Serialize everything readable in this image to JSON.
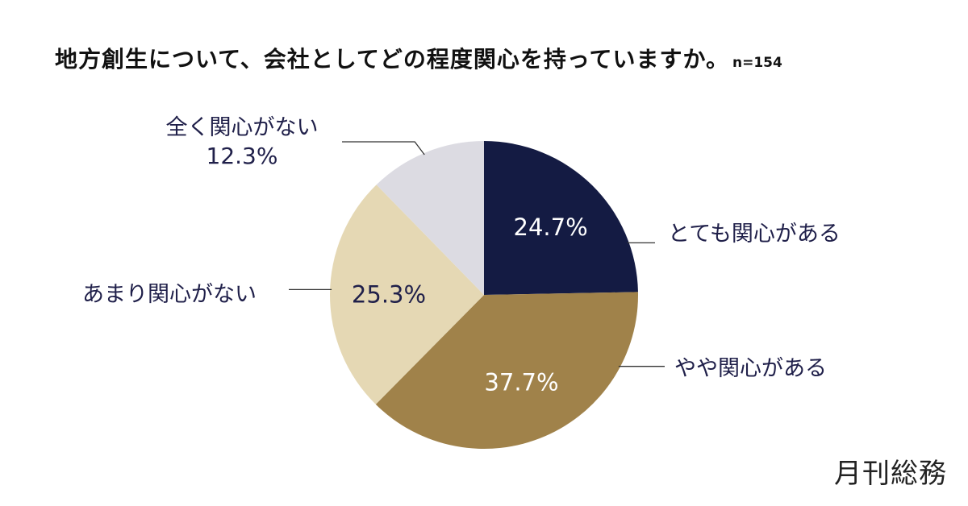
{
  "title": "地方創生について、会社としてどの程度関心を持っていますか。",
  "note": "n=154",
  "brand": "月刊総務",
  "chart_data": {
    "type": "pie",
    "title": "地方創生について、会社としてどの程度関心を持っていますか。",
    "sample_size": "n=154",
    "slices": [
      {
        "label": "とても関心がある",
        "value": 24.7,
        "value_label": "24.7%",
        "color": "#141b43"
      },
      {
        "label": "やや関心がある",
        "value": 37.7,
        "value_label": "37.7%",
        "color": "#a0824a"
      },
      {
        "label": "あまり関心がない",
        "value": 25.3,
        "value_label": "25.3%",
        "color": "#e5d8b4"
      },
      {
        "label": "全く関心がない",
        "value": 12.3,
        "value_label": "12.3%",
        "color": "#dcdbe2"
      }
    ],
    "start_angle": "12 o'clock",
    "direction": "clockwise"
  }
}
